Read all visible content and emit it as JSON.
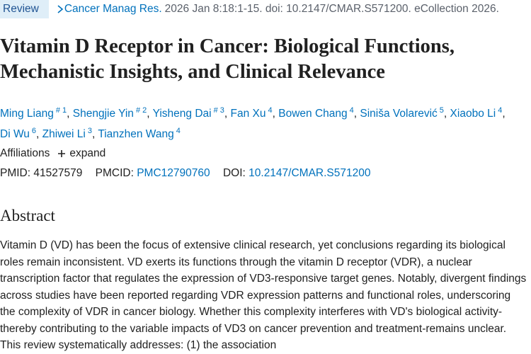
{
  "header": {
    "badge": "Review",
    "journal": "Cancer Manag Res.",
    "citation": "2026 Jan 8:18:1-15. doi: 10.2147/CMAR.S571200. eCollection 2026."
  },
  "title": "Vitamin D Receptor in Cancer: Biological Functions, Mechanistic Insights, and Clinical Relevance",
  "author_separator": ",",
  "authors": [
    {
      "name": "Ming Liang",
      "sup": "# 1"
    },
    {
      "name": "Shengjie Yin",
      "sup": "# 2"
    },
    {
      "name": "Yisheng Dai",
      "sup": "# 3"
    },
    {
      "name": "Fan Xu",
      "sup": "4"
    },
    {
      "name": "Bowen Chang",
      "sup": "4"
    },
    {
      "name": "Siniša Volarević",
      "sup": "5"
    },
    {
      "name": "Xiaobo Li",
      "sup": "4"
    },
    {
      "name": "Di Wu",
      "sup": "6"
    },
    {
      "name": "Zhiwei Li",
      "sup": "3"
    },
    {
      "name": "Tianzhen Wang",
      "sup": "4"
    }
  ],
  "affiliations": {
    "label": "Affiliations",
    "toggle": "expand"
  },
  "identifiers": {
    "pmid_label": "PMID:",
    "pmid": "41527579",
    "pmcid_label": "PMCID:",
    "pmcid": "PMC12790760",
    "doi_label": "DOI:",
    "doi": "10.2147/CMAR.S571200"
  },
  "abstract": {
    "heading": "Abstract",
    "text": "Vitamin D (VD) has been the focus of extensive clinical research, yet conclusions regarding its biological roles remain inconsistent. VD exerts its functions through the vitamin D receptor (VDR), a nuclear transcription factor that regulates the expression of VD3-responsive target genes. Notably, divergent findings across studies have been reported regarding VDR expression patterns and functional roles, underscoring the complexity of VDR in cancer biology. Whether this complexity interferes with VD's biological activity-thereby contributing to the variable impacts of VD3 on cancer prevention and treatment-remains unclear. This review systematically addresses: (1) the association"
  }
}
